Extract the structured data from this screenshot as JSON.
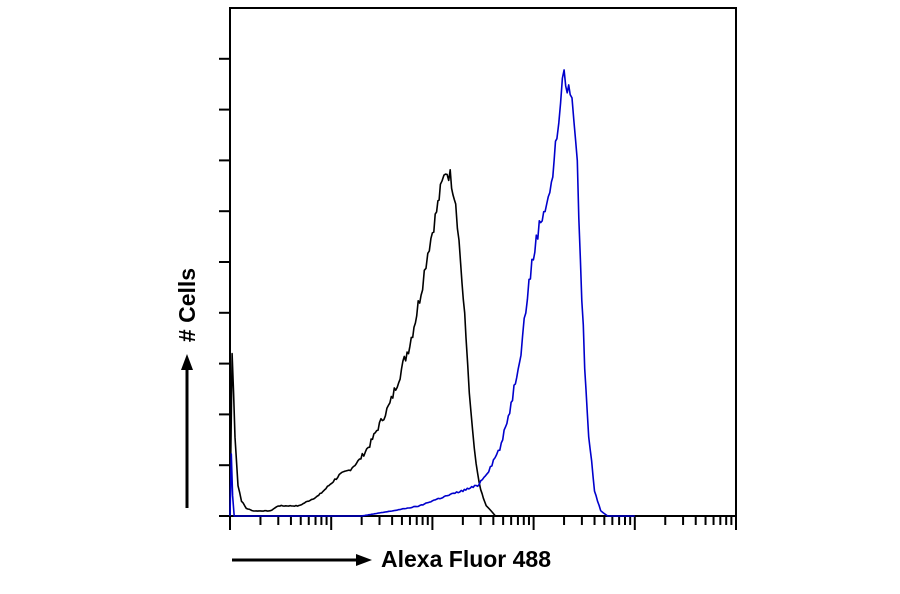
{
  "chart_data": {
    "type": "line",
    "title": "",
    "xlabel": "Alexa Fluor 488",
    "ylabel": "# Cells",
    "x_scale": "log",
    "xlim": [
      1,
      100000
    ],
    "ylim": [
      0,
      100
    ],
    "y_tick_count": 10,
    "grid": false,
    "legend": "none",
    "series": [
      {
        "color": "#000000",
        "x": [
          1.0,
          1.05,
          1.12,
          1.2,
          1.3,
          1.45,
          1.7,
          2.0,
          2.5,
          3.0,
          3.8,
          4.8,
          6.0,
          7.5,
          9.5,
          12,
          15,
          19,
          24,
          30,
          38,
          48,
          60,
          70,
          80,
          90,
          100,
          110,
          120,
          135,
          150,
          170,
          190,
          215,
          240,
          270,
          300,
          340,
          380,
          420
        ],
        "y": [
          0,
          32,
          16,
          6,
          3,
          1.5,
          1,
          1,
          1,
          2,
          2,
          2,
          3,
          4,
          6,
          8,
          9,
          11,
          14,
          18,
          22,
          28,
          34,
          40,
          46,
          52,
          56,
          60,
          64,
          68,
          67,
          62,
          50,
          35,
          20,
          10,
          5,
          2,
          1,
          0
        ]
      },
      {
        "color": "#0000cc",
        "x": [
          1.0,
          1.03,
          1.06,
          1.1,
          20,
          28,
          40,
          55,
          75,
          100,
          140,
          200,
          280,
          360,
          480,
          600,
          750,
          900,
          1100,
          1300,
          1500,
          1700,
          1850,
          2000,
          2150,
          2300,
          2500,
          2700,
          2900,
          3200,
          3500,
          4000,
          4600,
          5400,
          6200,
          7000,
          8000,
          10000
        ],
        "y": [
          0,
          12,
          4,
          0,
          0,
          0.5,
          1,
          1.5,
          2,
          3,
          4,
          5,
          6,
          9,
          14,
          22,
          33,
          46,
          56,
          61,
          65,
          75,
          82,
          88,
          83,
          84,
          79,
          69,
          50,
          30,
          16,
          5,
          1,
          0,
          0,
          0,
          0,
          0
        ]
      }
    ]
  }
}
